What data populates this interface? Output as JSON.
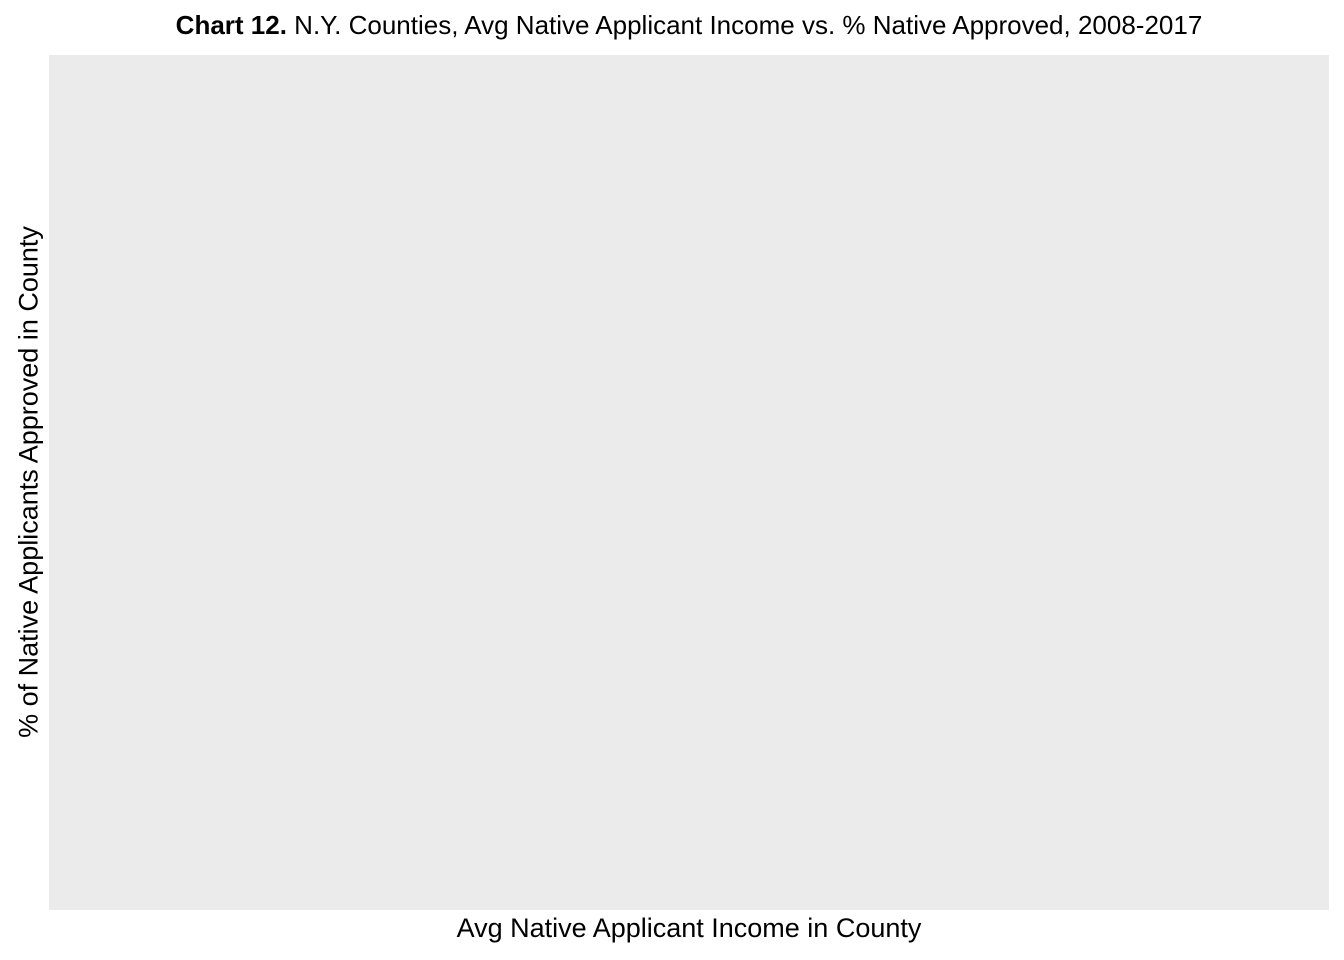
{
  "chart_data": {
    "type": "scatter",
    "title_prefix": "Chart 12.",
    "title": "N.Y. Counties, Avg Native Applicant Income vs. % Native Approved, 2008-2017",
    "xlabel": "Avg Native Applicant Income in County",
    "ylabel": "% of Native Applicants Approved in County",
    "points": [],
    "grid": false,
    "panel_color": "#ebebeb"
  }
}
